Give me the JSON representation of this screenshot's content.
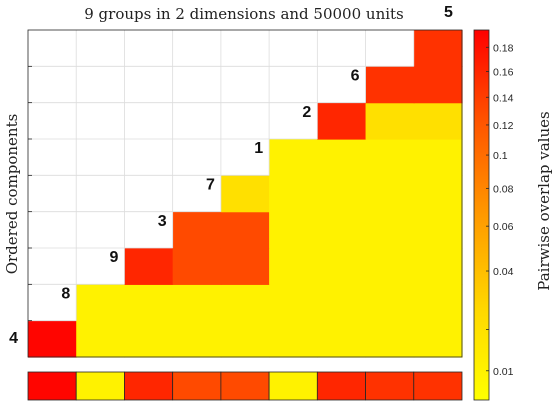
{
  "chart_data": {
    "type": "heatmap",
    "title": "9 groups in 2 dimensions and 50000 units",
    "ylabel": "Ordered components",
    "colorbar_label": "Pairwise overlap values",
    "colorbar_ticks": [
      0.01,
      0.02,
      0.04,
      0.06,
      0.08,
      0.1,
      0.12,
      0.14,
      0.16,
      0.18
    ],
    "colorbar_tick_labels": [
      "0.01",
      "",
      "0.04",
      "0.06",
      "0.08",
      "0.1",
      "0.12",
      "0.14",
      "0.16",
      "0.18"
    ],
    "colorbar_range": [
      0.005,
      0.195
    ],
    "colorbar_scale": "sqrt",
    "colormap": [
      "#ffff00",
      "#ffd700",
      "#ff9900",
      "#ff5500",
      "#ff0000"
    ],
    "grid": true,
    "order": [
      "4",
      "8",
      "9",
      "3",
      "7",
      "1",
      "2",
      "6",
      "5"
    ],
    "upper_rows": [
      [
        0.19,
        0.01,
        0.01,
        0.01,
        0.01,
        0.01,
        0.01,
        0.01,
        0.01
      ],
      [
        null,
        0.01,
        0.01,
        0.01,
        0.01,
        0.01,
        0.01,
        0.01,
        0.01
      ],
      [
        null,
        null,
        0.16,
        0.13,
        0.13,
        0.01,
        0.01,
        0.01,
        0.01
      ],
      [
        null,
        null,
        null,
        0.13,
        0.13,
        0.01,
        0.01,
        0.01,
        0.01
      ],
      [
        null,
        null,
        null,
        null,
        0.02,
        0.01,
        0.01,
        0.01,
        0.01
      ],
      [
        null,
        null,
        null,
        null,
        null,
        0.01,
        0.01,
        0.01,
        0.01
      ],
      [
        null,
        null,
        null,
        null,
        null,
        null,
        0.16,
        0.02,
        0.02
      ],
      [
        null,
        null,
        null,
        null,
        null,
        null,
        null,
        0.15,
        0.15
      ],
      [
        null,
        null,
        null,
        null,
        null,
        null,
        null,
        null,
        0.15
      ]
    ],
    "bottom_strip": [
      0.19,
      0.01,
      0.16,
      0.13,
      0.13,
      0.01,
      0.16,
      0.15,
      0.15
    ]
  }
}
